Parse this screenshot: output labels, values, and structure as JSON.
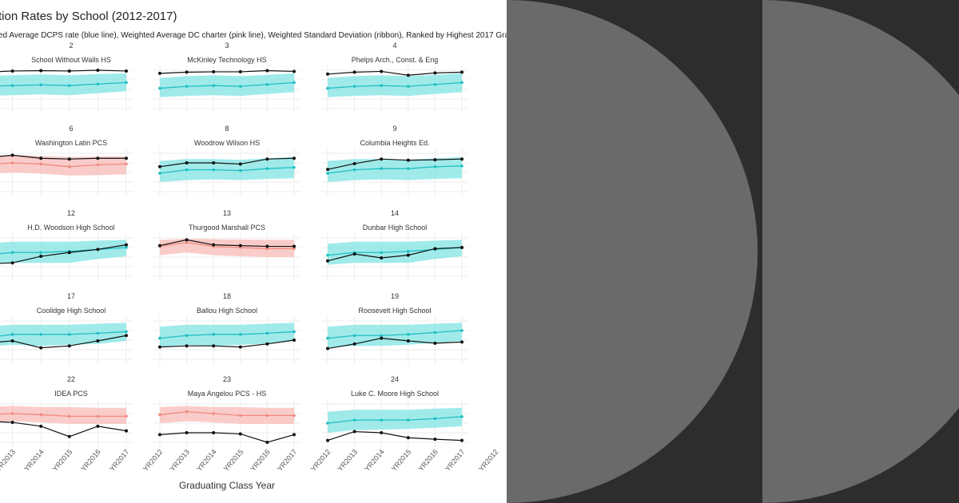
{
  "chart": {
    "title": "tion Rates by School (2012-2017)",
    "subtitle": "ed Average DCPS rate (blue line), Weighted Average DC charter (pink line), Weighted Standard Deviation (ribbon), Ranked by Highest 2017 Graduat",
    "xlabel": "Graduating Class Year"
  },
  "colors": {
    "dcps_line": "#1fbfc3",
    "dcps_ribbon": "#8fe6e6",
    "charter_line": "#f08a80",
    "charter_ribbon": "#f9c3bf",
    "school_line": "#111111",
    "panel_background": "#2d2d2d",
    "circle": "#6a6a6a"
  },
  "chart_data": {
    "type": "line",
    "layout": "small-multiples",
    "x": [
      "YR2012",
      "YR2013",
      "YR2014",
      "YR2015",
      "YR2016",
      "YR2017"
    ],
    "x_tick_labels_visible": [
      "YR2013",
      "YR2014",
      "YR2015",
      "YR2016",
      "YR2017",
      "YR2012",
      "YR2013",
      "YR2014",
      "YR2015",
      "YR2016",
      "YR2017",
      "YR2012",
      "YR2013",
      "YR2014",
      "YR2015",
      "YR2016",
      "YR2017",
      "YR2012"
    ],
    "ylim": [
      0,
      1
    ],
    "grid": true,
    "panels": [
      {
        "rank": "2",
        "name": "School Without Walls HS",
        "band": "dcps",
        "school": [
          0.95,
          0.98,
          0.99,
          0.98,
          1.0,
          0.98
        ],
        "average": [
          0.58,
          0.6,
          0.62,
          0.6,
          0.64,
          0.68
        ],
        "ribbon_low": [
          0.33,
          0.35,
          0.37,
          0.35,
          0.4,
          0.45
        ],
        "ribbon_high": [
          0.85,
          0.87,
          0.89,
          0.87,
          0.9,
          0.92
        ]
      },
      {
        "rank": "3",
        "name": "McKinley Technology HS",
        "band": "dcps",
        "school": [
          0.92,
          0.95,
          0.96,
          0.96,
          0.99,
          0.97
        ],
        "average": [
          0.53,
          0.58,
          0.6,
          0.58,
          0.63,
          0.68
        ],
        "ribbon_low": [
          0.3,
          0.33,
          0.35,
          0.33,
          0.38,
          0.43
        ],
        "ribbon_high": [
          0.8,
          0.85,
          0.87,
          0.85,
          0.88,
          0.92
        ]
      },
      {
        "rank": "4",
        "name": "Phelps Arch., Const. & Eng",
        "band": "dcps",
        "school": [
          0.9,
          0.95,
          0.97,
          0.87,
          0.93,
          0.95
        ],
        "average": [
          0.53,
          0.58,
          0.6,
          0.58,
          0.63,
          0.68
        ],
        "ribbon_low": [
          0.3,
          0.33,
          0.35,
          0.33,
          0.38,
          0.43
        ],
        "ribbon_high": [
          0.8,
          0.85,
          0.87,
          0.85,
          0.88,
          0.92
        ]
      },
      {
        "rank": "6",
        "name": "Washington Latin PCS",
        "band": "charter",
        "school": [
          0.88,
          0.95,
          0.87,
          0.85,
          0.87,
          0.87
        ],
        "average": [
          0.7,
          0.75,
          0.72,
          0.65,
          0.7,
          0.72
        ],
        "ribbon_low": [
          0.45,
          0.5,
          0.47,
          0.42,
          0.43,
          0.45
        ],
        "ribbon_high": [
          0.92,
          0.96,
          0.93,
          0.9,
          0.92,
          0.92
        ]
      },
      {
        "rank": "8",
        "name": "Woodrow Wilson HS",
        "band": "dcps",
        "school": [
          0.65,
          0.75,
          0.75,
          0.72,
          0.85,
          0.87
        ],
        "average": [
          0.48,
          0.57,
          0.57,
          0.55,
          0.6,
          0.63
        ],
        "ribbon_low": [
          0.25,
          0.3,
          0.32,
          0.3,
          0.33,
          0.35
        ],
        "ribbon_high": [
          0.8,
          0.85,
          0.85,
          0.83,
          0.87,
          0.9
        ]
      },
      {
        "rank": "9",
        "name": "Columbia Heights Ed.",
        "band": "dcps",
        "school": [
          0.58,
          0.73,
          0.85,
          0.82,
          0.83,
          0.85
        ],
        "average": [
          0.48,
          0.57,
          0.6,
          0.6,
          0.65,
          0.67
        ],
        "ribbon_low": [
          0.25,
          0.3,
          0.32,
          0.3,
          0.33,
          0.35
        ],
        "ribbon_high": [
          0.8,
          0.85,
          0.85,
          0.83,
          0.87,
          0.9
        ]
      },
      {
        "rank": "12",
        "name": "H.D. Woodson High School",
        "band": "dcps",
        "school": [
          0.32,
          0.35,
          0.52,
          0.62,
          0.7,
          0.82
        ],
        "average": [
          0.55,
          0.62,
          0.62,
          0.65,
          0.7,
          0.75
        ],
        "ribbon_low": [
          0.3,
          0.35,
          0.35,
          0.35,
          0.45,
          0.52
        ],
        "ribbon_high": [
          0.85,
          0.9,
          0.9,
          0.9,
          0.93,
          0.95
        ]
      },
      {
        "rank": "13",
        "name": "Thurgood Marshall PCS",
        "band": "charter",
        "school": [
          0.8,
          0.95,
          0.82,
          0.8,
          0.78,
          0.78
        ],
        "average": [
          0.78,
          0.88,
          0.78,
          0.75,
          0.72,
          0.72
        ],
        "ribbon_low": [
          0.55,
          0.62,
          0.55,
          0.52,
          0.5,
          0.5
        ],
        "ribbon_high": [
          0.95,
          0.98,
          0.97,
          0.96,
          0.95,
          0.95
        ]
      },
      {
        "rank": "14",
        "name": "Dunbar High School",
        "band": "dcps",
        "school": [
          0.4,
          0.58,
          0.48,
          0.55,
          0.72,
          0.75
        ],
        "average": [
          0.55,
          0.62,
          0.62,
          0.65,
          0.7,
          0.75
        ],
        "ribbon_low": [
          0.3,
          0.35,
          0.35,
          0.35,
          0.45,
          0.52
        ],
        "ribbon_high": [
          0.85,
          0.9,
          0.9,
          0.9,
          0.93,
          0.95
        ]
      },
      {
        "rank": "17",
        "name": "Coolidge High School",
        "band": "dcps",
        "school": [
          0.42,
          0.48,
          0.3,
          0.35,
          0.48,
          0.62
        ],
        "average": [
          0.55,
          0.65,
          0.65,
          0.65,
          0.68,
          0.72
        ],
        "ribbon_low": [
          0.32,
          0.38,
          0.35,
          0.38,
          0.4,
          0.48
        ],
        "ribbon_high": [
          0.85,
          0.9,
          0.9,
          0.9,
          0.93,
          0.95
        ]
      },
      {
        "rank": "18",
        "name": "Ballou High School",
        "band": "dcps",
        "school": [
          0.32,
          0.35,
          0.35,
          0.32,
          0.4,
          0.5
        ],
        "average": [
          0.55,
          0.62,
          0.65,
          0.65,
          0.68,
          0.72
        ],
        "ribbon_low": [
          0.32,
          0.38,
          0.35,
          0.38,
          0.4,
          0.48
        ],
        "ribbon_high": [
          0.85,
          0.9,
          0.9,
          0.9,
          0.93,
          0.95
        ]
      },
      {
        "rank": "19",
        "name": "Roosevelt High School",
        "band": "dcps",
        "school": [
          0.28,
          0.4,
          0.55,
          0.48,
          0.42,
          0.45
        ],
        "average": [
          0.55,
          0.62,
          0.62,
          0.65,
          0.7,
          0.75
        ],
        "ribbon_low": [
          0.3,
          0.35,
          0.35,
          0.38,
          0.42,
          0.48
        ],
        "ribbon_high": [
          0.85,
          0.9,
          0.9,
          0.9,
          0.93,
          0.95
        ]
      },
      {
        "rank": "22",
        "name": "IDEA PCS",
        "band": "charter",
        "school": [
          0.55,
          0.52,
          0.42,
          0.15,
          0.42,
          0.3
        ],
        "average": [
          0.72,
          0.75,
          0.72,
          0.68,
          0.68,
          0.68
        ],
        "ribbon_low": [
          0.5,
          0.55,
          0.52,
          0.48,
          0.48,
          0.48
        ],
        "ribbon_high": [
          0.92,
          0.95,
          0.92,
          0.92,
          0.9,
          0.9
        ]
      },
      {
        "rank": "23",
        "name": "Maya Angelou PCS - HS",
        "band": "charter",
        "school": [
          0.2,
          0.25,
          0.25,
          0.22,
          0.0,
          0.2
        ],
        "average": [
          0.72,
          0.8,
          0.75,
          0.7,
          0.7,
          0.7
        ],
        "ribbon_low": [
          0.5,
          0.55,
          0.52,
          0.48,
          0.48,
          0.48
        ],
        "ribbon_high": [
          0.92,
          0.95,
          0.92,
          0.92,
          0.9,
          0.9
        ]
      },
      {
        "rank": "24",
        "name": "Luke C. Moore High School",
        "band": "dcps",
        "school": [
          0.05,
          0.28,
          0.25,
          0.12,
          0.08,
          0.05
        ],
        "average": [
          0.5,
          0.58,
          0.58,
          0.58,
          0.62,
          0.67
        ],
        "ribbon_low": [
          0.25,
          0.32,
          0.33,
          0.35,
          0.38,
          0.42
        ],
        "ribbon_high": [
          0.8,
          0.85,
          0.85,
          0.85,
          0.88,
          0.9
        ]
      }
    ]
  }
}
